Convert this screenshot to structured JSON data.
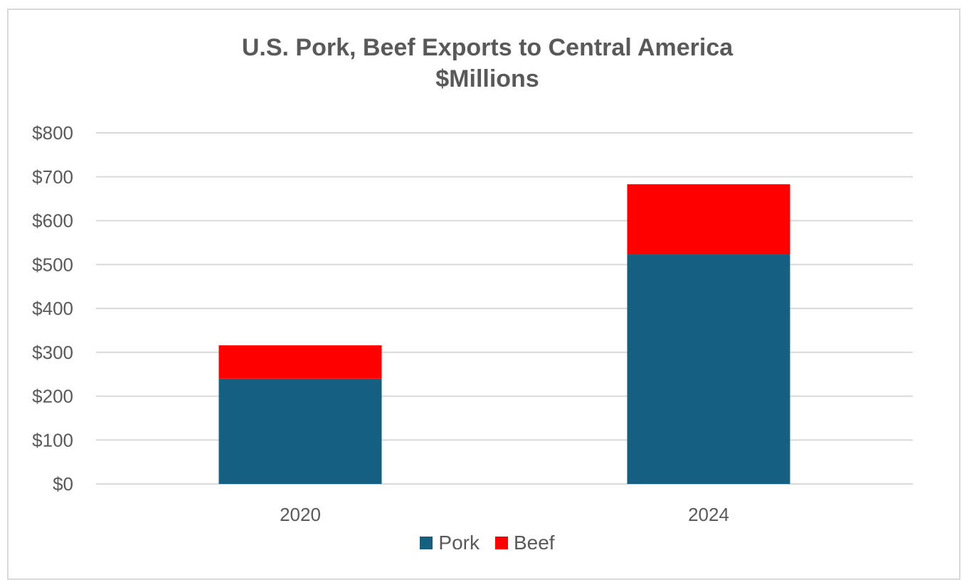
{
  "chart_data": {
    "type": "bar",
    "stacked": true,
    "title": "U.S. Pork, Beef Exports to Central America",
    "subtitle": "$Millions",
    "xlabel": "",
    "ylabel": "",
    "categories": [
      "2020",
      "2024"
    ],
    "series": [
      {
        "name": "Pork",
        "values": [
          240,
          523
        ],
        "color": "#156082"
      },
      {
        "name": "Beef",
        "values": [
          76,
          160
        ],
        "color": "#ff0000"
      }
    ],
    "ylim": [
      0,
      800
    ],
    "yticks": [
      0,
      100,
      200,
      300,
      400,
      500,
      600,
      700,
      800
    ],
    "ytick_labels": [
      "$0",
      "$100",
      "$200",
      "$300",
      "$400",
      "$500",
      "$600",
      "$700",
      "$800"
    ],
    "grid": true,
    "legend": "bottom"
  }
}
